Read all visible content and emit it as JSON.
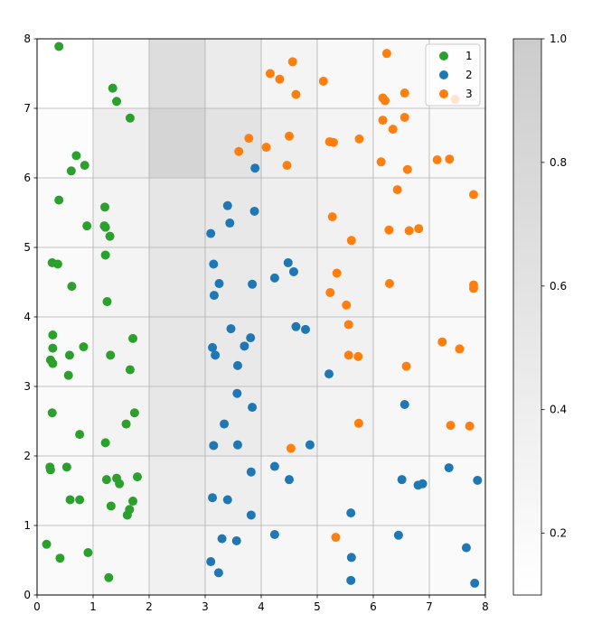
{
  "chart_data": {
    "type": "scatter",
    "xlim": [
      0,
      8
    ],
    "ylim": [
      0,
      8
    ],
    "x_ticks": [
      "0",
      "1",
      "2",
      "3",
      "4",
      "5",
      "6",
      "7",
      "8"
    ],
    "y_ticks": [
      "0",
      "1",
      "2",
      "3",
      "4",
      "5",
      "6",
      "7",
      "8"
    ],
    "grid": true,
    "legend_position": "top-right",
    "background_heatmap": {
      "colormap": "Greys",
      "x_edges": [
        0,
        1,
        2,
        3,
        4,
        5,
        6,
        7,
        8
      ],
      "y_edges": [
        0,
        1,
        2,
        3,
        4,
        5,
        6,
        7,
        8
      ],
      "rows_bottom_to_top": [
        [
          0.18,
          0.22,
          0.35,
          0.3,
          0.25,
          0.22,
          0.2,
          0.18
        ],
        [
          0.18,
          0.28,
          0.45,
          0.4,
          0.3,
          0.25,
          0.22,
          0.2
        ],
        [
          0.18,
          0.32,
          0.52,
          0.45,
          0.38,
          0.32,
          0.25,
          0.22
        ],
        [
          0.18,
          0.32,
          0.55,
          0.48,
          0.4,
          0.35,
          0.25,
          0.2
        ],
        [
          0.18,
          0.3,
          0.55,
          0.48,
          0.38,
          0.35,
          0.25,
          0.2
        ],
        [
          0.18,
          0.32,
          0.55,
          0.5,
          0.4,
          0.35,
          0.25,
          0.2
        ],
        [
          0.15,
          0.4,
          0.85,
          0.6,
          0.4,
          0.3,
          0.22,
          0.2
        ],
        [
          0.1,
          0.25,
          0.7,
          0.45,
          0.3,
          0.22,
          0.2,
          0.18
        ]
      ]
    },
    "colorbar": {
      "ticks": [
        "0.2",
        "0.4",
        "0.6",
        "0.8",
        "1.0"
      ],
      "tick_values": [
        0.2,
        0.4,
        0.6,
        0.8,
        1.0
      ],
      "range": [
        0.1,
        1.0
      ]
    },
    "series": [
      {
        "name": "1",
        "color": "#2ca02c",
        "points": [
          [
            0.39,
            7.89
          ],
          [
            1.35,
            7.29
          ],
          [
            1.42,
            7.1
          ],
          [
            1.66,
            6.86
          ],
          [
            0.7,
            6.32
          ],
          [
            0.85,
            6.18
          ],
          [
            0.61,
            6.1
          ],
          [
            0.39,
            5.68
          ],
          [
            1.21,
            5.58
          ],
          [
            0.89,
            5.31
          ],
          [
            1.2,
            5.31
          ],
          [
            1.22,
            5.29
          ],
          [
            1.3,
            5.16
          ],
          [
            1.22,
            4.89
          ],
          [
            0.27,
            4.78
          ],
          [
            0.37,
            4.76
          ],
          [
            0.62,
            4.44
          ],
          [
            1.25,
            4.22
          ],
          [
            0.28,
            3.74
          ],
          [
            1.71,
            3.69
          ],
          [
            0.83,
            3.57
          ],
          [
            0.28,
            3.55
          ],
          [
            0.58,
            3.45
          ],
          [
            1.31,
            3.45
          ],
          [
            0.24,
            3.38
          ],
          [
            0.28,
            3.33
          ],
          [
            1.66,
            3.24
          ],
          [
            0.56,
            3.16
          ],
          [
            0.27,
            2.62
          ],
          [
            1.74,
            2.62
          ],
          [
            1.59,
            2.46
          ],
          [
            0.76,
            2.31
          ],
          [
            1.22,
            2.19
          ],
          [
            0.23,
            1.84
          ],
          [
            0.53,
            1.84
          ],
          [
            0.24,
            1.8
          ],
          [
            1.79,
            1.7
          ],
          [
            1.24,
            1.66
          ],
          [
            1.42,
            1.68
          ],
          [
            1.47,
            1.6
          ],
          [
            0.59,
            1.37
          ],
          [
            0.76,
            1.37
          ],
          [
            1.71,
            1.35
          ],
          [
            1.32,
            1.28
          ],
          [
            1.65,
            1.23
          ],
          [
            1.61,
            1.15
          ],
          [
            0.17,
            0.73
          ],
          [
            0.91,
            0.61
          ],
          [
            0.41,
            0.53
          ],
          [
            1.28,
            0.25
          ]
        ]
      },
      {
        "name": "2",
        "color": "#1f77b4",
        "points": [
          [
            3.89,
            6.14
          ],
          [
            3.4,
            5.6
          ],
          [
            3.88,
            5.52
          ],
          [
            3.44,
            5.35
          ],
          [
            3.1,
            5.2
          ],
          [
            3.15,
            4.76
          ],
          [
            4.48,
            4.78
          ],
          [
            4.58,
            4.65
          ],
          [
            4.24,
            4.56
          ],
          [
            3.25,
            4.48
          ],
          [
            3.84,
            4.47
          ],
          [
            3.16,
            4.31
          ],
          [
            4.62,
            3.86
          ],
          [
            3.46,
            3.83
          ],
          [
            4.79,
            3.82
          ],
          [
            3.81,
            3.7
          ],
          [
            3.7,
            3.58
          ],
          [
            3.13,
            3.56
          ],
          [
            3.18,
            3.45
          ],
          [
            3.58,
            3.3
          ],
          [
            5.21,
            3.18
          ],
          [
            3.57,
            2.9
          ],
          [
            6.56,
            2.74
          ],
          [
            3.84,
            2.7
          ],
          [
            3.34,
            2.46
          ],
          [
            3.15,
            2.15
          ],
          [
            3.58,
            2.16
          ],
          [
            4.87,
            2.16
          ],
          [
            4.24,
            1.85
          ],
          [
            7.35,
            1.83
          ],
          [
            3.82,
            1.77
          ],
          [
            4.5,
            1.66
          ],
          [
            6.51,
            1.66
          ],
          [
            7.86,
            1.65
          ],
          [
            6.88,
            1.6
          ],
          [
            6.8,
            1.58
          ],
          [
            3.13,
            1.4
          ],
          [
            3.4,
            1.37
          ],
          [
            5.6,
            1.18
          ],
          [
            3.82,
            1.15
          ],
          [
            4.24,
            0.87
          ],
          [
            6.45,
            0.86
          ],
          [
            3.3,
            0.81
          ],
          [
            3.56,
            0.78
          ],
          [
            7.66,
            0.68
          ],
          [
            5.61,
            0.54
          ],
          [
            3.1,
            0.48
          ],
          [
            3.24,
            0.32
          ],
          [
            5.6,
            0.21
          ],
          [
            7.81,
            0.17
          ]
        ]
      },
      {
        "name": "3",
        "color": "#ff7f0e",
        "points": [
          [
            6.24,
            7.79
          ],
          [
            4.56,
            7.67
          ],
          [
            4.16,
            7.5
          ],
          [
            4.33,
            7.42
          ],
          [
            5.11,
            7.39
          ],
          [
            6.56,
            7.22
          ],
          [
            4.62,
            7.2
          ],
          [
            6.17,
            7.15
          ],
          [
            6.21,
            7.11
          ],
          [
            7.46,
            7.13
          ],
          [
            6.17,
            6.83
          ],
          [
            6.56,
            6.87
          ],
          [
            6.35,
            6.7
          ],
          [
            3.78,
            6.57
          ],
          [
            4.5,
            6.6
          ],
          [
            5.75,
            6.56
          ],
          [
            5.22,
            6.52
          ],
          [
            5.29,
            6.51
          ],
          [
            4.09,
            6.44
          ],
          [
            3.6,
            6.38
          ],
          [
            7.14,
            6.26
          ],
          [
            7.36,
            6.27
          ],
          [
            6.14,
            6.23
          ],
          [
            4.46,
            6.18
          ],
          [
            6.61,
            6.12
          ],
          [
            6.43,
            5.83
          ],
          [
            7.79,
            5.76
          ],
          [
            5.27,
            5.44
          ],
          [
            6.28,
            5.25
          ],
          [
            6.81,
            5.27
          ],
          [
            6.64,
            5.24
          ],
          [
            5.61,
            5.1
          ],
          [
            5.35,
            4.63
          ],
          [
            6.29,
            4.48
          ],
          [
            7.79,
            4.46
          ],
          [
            7.79,
            4.41
          ],
          [
            5.23,
            4.35
          ],
          [
            5.52,
            4.17
          ],
          [
            5.56,
            3.89
          ],
          [
            7.23,
            3.64
          ],
          [
            7.54,
            3.54
          ],
          [
            5.56,
            3.45
          ],
          [
            5.73,
            3.43
          ],
          [
            6.59,
            3.29
          ],
          [
            5.74,
            2.47
          ],
          [
            7.38,
            2.44
          ],
          [
            7.72,
            2.43
          ],
          [
            4.53,
            2.11
          ],
          [
            5.33,
            0.83
          ]
        ]
      }
    ]
  }
}
